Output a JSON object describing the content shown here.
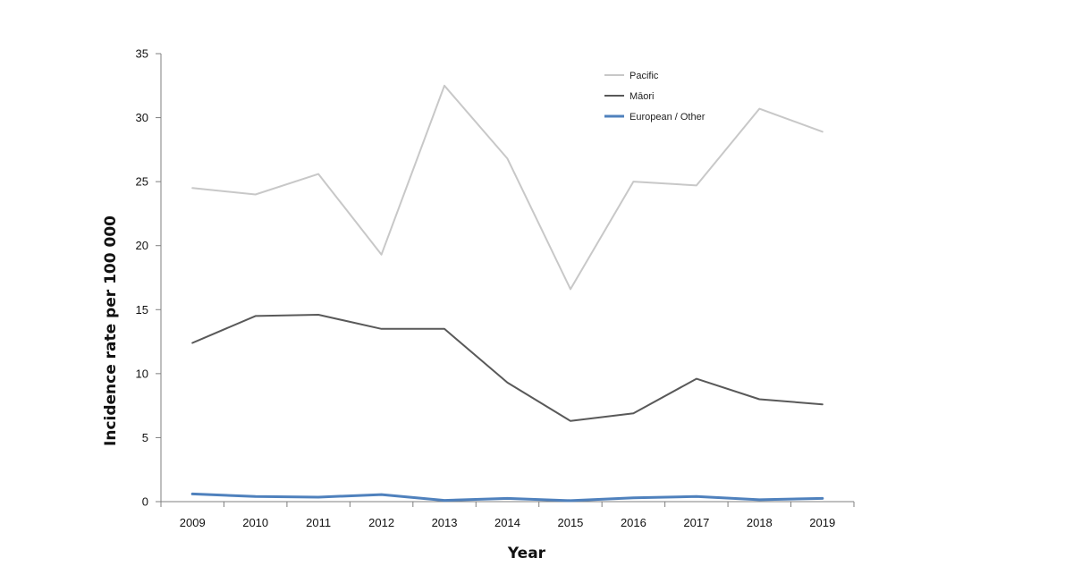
{
  "chart_data": {
    "type": "line",
    "title": "",
    "xlabel": "Year",
    "ylabel": "Incidence rate per 100 000",
    "x": [
      "2009",
      "2010",
      "2011",
      "2012",
      "2013",
      "2014",
      "2015",
      "2016",
      "2017",
      "2018",
      "2019"
    ],
    "ylim": [
      0,
      35
    ],
    "yticks": [
      0,
      5,
      10,
      15,
      20,
      25,
      30,
      35
    ],
    "grid": false,
    "legend_position": "top-right",
    "series": [
      {
        "name": "Pacific",
        "color": "#c8c8c8",
        "values": [
          24.5,
          24.0,
          25.6,
          19.3,
          32.5,
          26.8,
          16.6,
          25.0,
          24.7,
          30.7,
          28.9
        ]
      },
      {
        "name": "Māori",
        "color": "#595959",
        "values": [
          12.4,
          14.5,
          14.6,
          13.5,
          13.5,
          9.3,
          6.3,
          6.9,
          9.6,
          8.0,
          7.6
        ]
      },
      {
        "name": "European / Other",
        "color": "#4f81bd",
        "values": [
          0.6,
          0.4,
          0.35,
          0.55,
          0.1,
          0.25,
          0.08,
          0.3,
          0.4,
          0.15,
          0.25
        ]
      }
    ]
  }
}
